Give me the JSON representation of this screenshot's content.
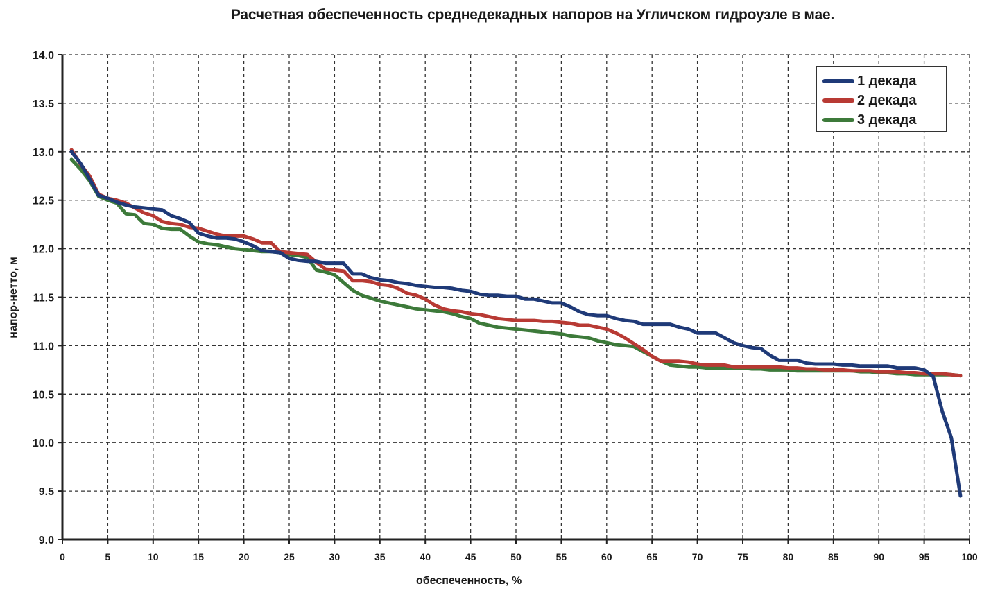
{
  "chart_data": {
    "type": "line",
    "title": "Расчетная обеспеченность среднедекадных напоров на Угличском гидроузле в мае.",
    "xlabel": "обеспеченность,  %",
    "ylabel": "напор-нетто, м",
    "xlim": [
      0,
      100
    ],
    "ylim": [
      9.0,
      14.0
    ],
    "x_ticks": [
      "0",
      "5",
      "10",
      "15",
      "20",
      "25",
      "30",
      "35",
      "40",
      "45",
      "50",
      "55",
      "60",
      "65",
      "70",
      "75",
      "80",
      "85",
      "90",
      "95",
      "100"
    ],
    "y_ticks": [
      "9.0",
      "9.5",
      "10.0",
      "10.5",
      "11.0",
      "11.5",
      "12.0",
      "12.5",
      "13.0",
      "13.5",
      "14.0"
    ],
    "grid": true,
    "legend_position": "upper right",
    "x": [
      1,
      2,
      3,
      4,
      5,
      6,
      7,
      8,
      9,
      10,
      11,
      12,
      13,
      14,
      15,
      16,
      17,
      18,
      19,
      20,
      21,
      22,
      23,
      24,
      25,
      26,
      27,
      28,
      29,
      30,
      31,
      32,
      33,
      34,
      35,
      36,
      37,
      38,
      39,
      40,
      41,
      42,
      43,
      44,
      45,
      46,
      47,
      48,
      49,
      50,
      51,
      52,
      53,
      54,
      55,
      56,
      57,
      58,
      59,
      60,
      61,
      62,
      63,
      64,
      65,
      66,
      67,
      68,
      69,
      70,
      71,
      72,
      73,
      74,
      75,
      76,
      77,
      78,
      79,
      80,
      81,
      82,
      83,
      84,
      85,
      86,
      87,
      88,
      89,
      90,
      91,
      92,
      93,
      94,
      95,
      96,
      97,
      98,
      99
    ],
    "series": [
      {
        "name": "1 декада",
        "color": "#1f3a78",
        "values": [
          13.0,
          12.88,
          12.72,
          12.55,
          12.52,
          12.48,
          12.45,
          12.43,
          12.42,
          12.41,
          12.4,
          12.34,
          12.31,
          12.27,
          12.16,
          12.13,
          12.11,
          12.11,
          12.1,
          12.07,
          12.03,
          11.98,
          11.97,
          11.96,
          11.9,
          11.88,
          11.87,
          11.87,
          11.85,
          11.85,
          11.85,
          11.74,
          11.74,
          11.7,
          11.68,
          11.67,
          11.65,
          11.64,
          11.62,
          11.61,
          11.6,
          11.6,
          11.59,
          11.57,
          11.56,
          11.53,
          11.52,
          11.52,
          11.51,
          11.51,
          11.48,
          11.48,
          11.46,
          11.44,
          11.44,
          11.4,
          11.35,
          11.32,
          11.31,
          11.31,
          11.28,
          11.26,
          11.25,
          11.22,
          11.22,
          11.22,
          11.22,
          11.19,
          11.17,
          11.13,
          11.13,
          11.13,
          11.08,
          11.03,
          11.0,
          10.98,
          10.97,
          10.9,
          10.85,
          10.85,
          10.85,
          10.82,
          10.81,
          10.81,
          10.81,
          10.8,
          10.8,
          10.79,
          10.79,
          10.79,
          10.79,
          10.77,
          10.77,
          10.77,
          10.75,
          10.68,
          10.32,
          10.05,
          9.45
        ]
      },
      {
        "name": "2 декада",
        "color": "#b83a34",
        "values": [
          13.02,
          12.87,
          12.75,
          12.56,
          12.52,
          12.5,
          12.47,
          12.42,
          12.37,
          12.34,
          12.28,
          12.26,
          12.25,
          12.22,
          12.21,
          12.18,
          12.15,
          12.13,
          12.13,
          12.13,
          12.1,
          12.06,
          12.06,
          11.97,
          11.96,
          11.95,
          11.94,
          11.86,
          11.79,
          11.78,
          11.77,
          11.67,
          11.67,
          11.66,
          11.63,
          11.62,
          11.59,
          11.54,
          11.52,
          11.48,
          11.42,
          11.38,
          11.36,
          11.35,
          11.33,
          11.32,
          11.3,
          11.28,
          11.27,
          11.26,
          11.26,
          11.26,
          11.25,
          11.25,
          11.24,
          11.23,
          11.21,
          11.21,
          11.19,
          11.17,
          11.13,
          11.08,
          11.02,
          10.96,
          10.89,
          10.84,
          10.84,
          10.84,
          10.83,
          10.81,
          10.8,
          10.8,
          10.8,
          10.78,
          10.78,
          10.78,
          10.78,
          10.78,
          10.78,
          10.77,
          10.77,
          10.76,
          10.76,
          10.75,
          10.75,
          10.75,
          10.74,
          10.74,
          10.74,
          10.73,
          10.73,
          10.73,
          10.72,
          10.72,
          10.71,
          10.71,
          10.71,
          10.7,
          10.69
        ]
      },
      {
        "name": "3 декада",
        "color": "#3d7a3a",
        "values": [
          12.92,
          12.82,
          12.7,
          12.54,
          12.5,
          12.47,
          12.36,
          12.35,
          12.26,
          12.25,
          12.21,
          12.2,
          12.2,
          12.13,
          12.07,
          12.05,
          12.04,
          12.02,
          12.0,
          11.99,
          11.98,
          11.97,
          11.97,
          11.96,
          11.94,
          11.93,
          11.91,
          11.78,
          11.76,
          11.73,
          11.65,
          11.57,
          11.52,
          11.49,
          11.46,
          11.44,
          11.42,
          11.4,
          11.38,
          11.37,
          11.36,
          11.35,
          11.33,
          11.3,
          11.28,
          11.23,
          11.21,
          11.19,
          11.18,
          11.17,
          11.16,
          11.15,
          11.14,
          11.13,
          11.12,
          11.1,
          11.09,
          11.08,
          11.05,
          11.03,
          11.01,
          11.0,
          10.99,
          10.94,
          10.89,
          10.84,
          10.8,
          10.79,
          10.78,
          10.78,
          10.77,
          10.77,
          10.77,
          10.77,
          10.77,
          10.76,
          10.76,
          10.75,
          10.75,
          10.75,
          10.74,
          10.74,
          10.74,
          10.74,
          10.74,
          10.74,
          10.74,
          10.73,
          10.73,
          10.72,
          10.72,
          10.71,
          10.71,
          10.7,
          10.7,
          10.7,
          10.7,
          10.7,
          10.69
        ]
      }
    ]
  },
  "legend": {
    "items": [
      {
        "label": "1 декада",
        "color": "#1f3a78"
      },
      {
        "label": "2 декада",
        "color": "#b83a34"
      },
      {
        "label": "3 декада",
        "color": "#3d7a3a"
      }
    ]
  }
}
